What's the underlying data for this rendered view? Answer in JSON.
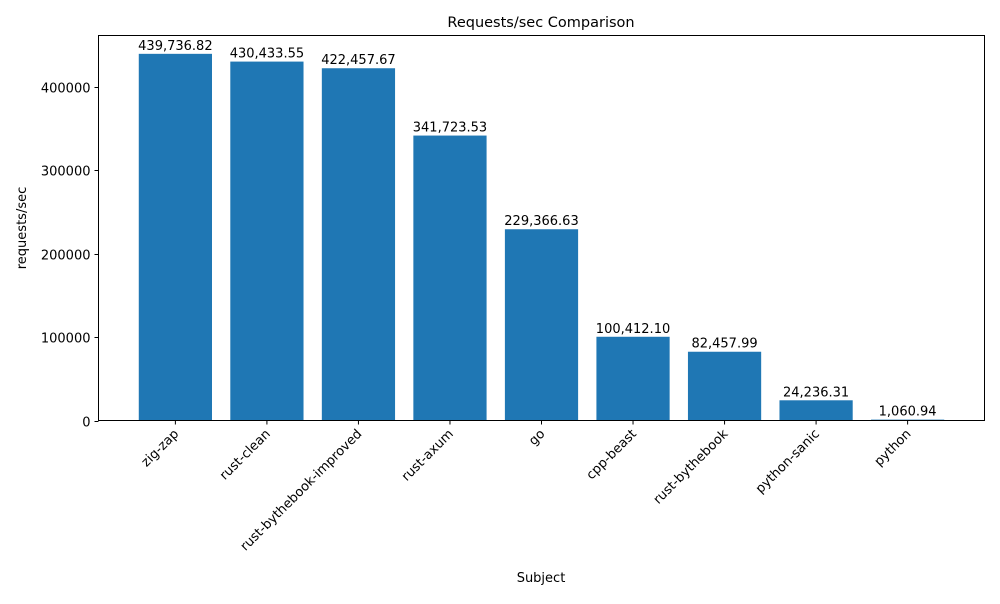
{
  "chart_data": {
    "type": "bar",
    "title": "Requests/sec Comparison",
    "xlabel": "Subject",
    "ylabel": "requests/sec",
    "categories": [
      "zig-zap",
      "rust-clean",
      "rust-bythebook-improved",
      "rust-axum",
      "go",
      "cpp-beast",
      "rust-bythebook",
      "python-sanic",
      "python"
    ],
    "values": [
      439736.82,
      430433.55,
      422457.67,
      341723.53,
      229366.63,
      100412.1,
      82457.99,
      24236.31,
      1060.94
    ],
    "data_labels": [
      "439,736.82",
      "430,433.55",
      "422,457.67",
      "341,723.53",
      "229,366.63",
      "100,412.10",
      "82,457.99",
      "24,236.31",
      "1,060.94"
    ],
    "ylim": [
      0,
      461723.66
    ],
    "yticks": [
      0,
      100000,
      200000,
      300000,
      400000
    ],
    "ytick_labels": [
      "0",
      "100000",
      "200000",
      "300000",
      "400000"
    ],
    "grid": false,
    "bar_color": "#1f77b4"
  }
}
